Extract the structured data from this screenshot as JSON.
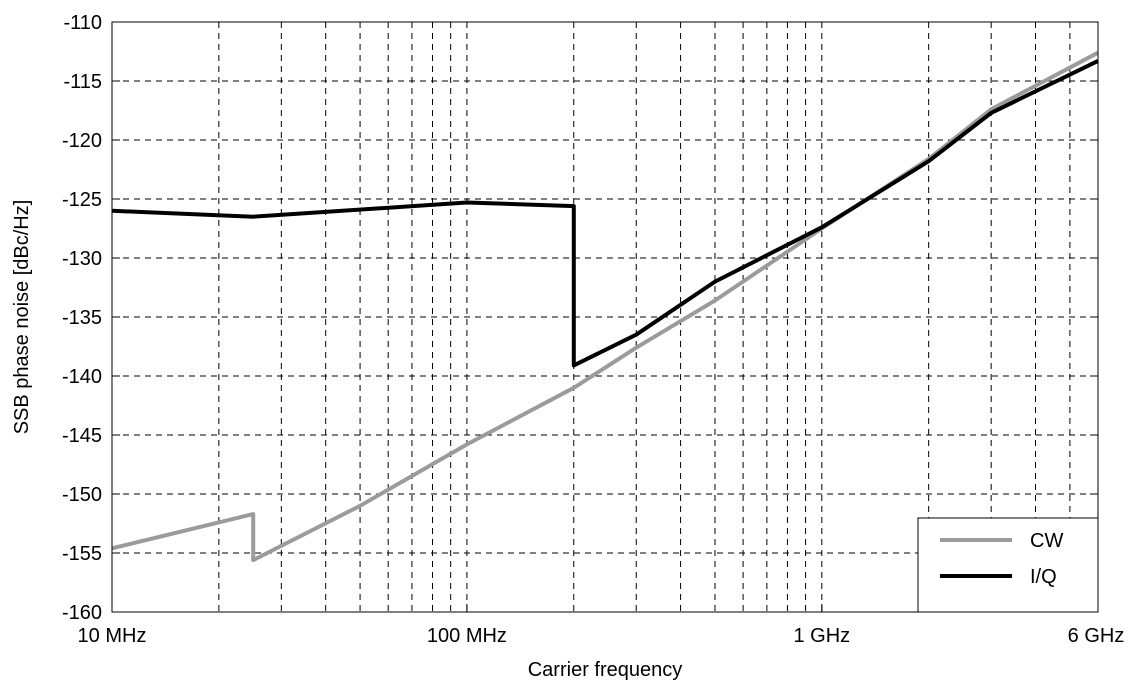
{
  "chart_data": {
    "type": "line",
    "xlabel": "Carrier frequency",
    "ylabel": "SSB phase noise [dBc/Hz]",
    "x_scale": "log",
    "x_unit": "Hz",
    "xlim": [
      10000000,
      6000000000
    ],
    "ylim": [
      -160,
      -110
    ],
    "grid": true,
    "grid_style": "dashed",
    "legend_position": "bottom-right",
    "x_ticks": [
      {
        "value": 10000000,
        "label": "10 MHz"
      },
      {
        "value": 100000000,
        "label": "100 MHz"
      },
      {
        "value": 1000000000,
        "label": "1 GHz"
      },
      {
        "value": 6000000000,
        "label": "6 GHz"
      }
    ],
    "y_ticks": [
      -110,
      -115,
      -120,
      -125,
      -130,
      -135,
      -140,
      -145,
      -150,
      -155,
      -160
    ],
    "series": [
      {
        "name": "CW",
        "color": "#9b9b9b",
        "x": [
          10000000,
          25000000,
          25000000,
          50000000,
          100000000,
          200000000,
          300000000,
          500000000,
          1000000000,
          2000000000,
          3000000000,
          6000000000
        ],
        "y": [
          -154.6,
          -151.7,
          -155.6,
          -151.0,
          -145.8,
          -141.0,
          -137.6,
          -133.6,
          -127.5,
          -121.6,
          -117.4,
          -112.6
        ]
      },
      {
        "name": "I/Q",
        "color": "#000000",
        "x": [
          10000000,
          25000000,
          100000000,
          200000000,
          200000000,
          300000000,
          500000000,
          1000000000,
          2000000000,
          3000000000,
          6000000000
        ],
        "y": [
          -126.0,
          -126.5,
          -125.3,
          -125.6,
          -139.1,
          -136.5,
          -132.0,
          -127.4,
          -121.8,
          -117.7,
          -113.3
        ]
      }
    ]
  }
}
